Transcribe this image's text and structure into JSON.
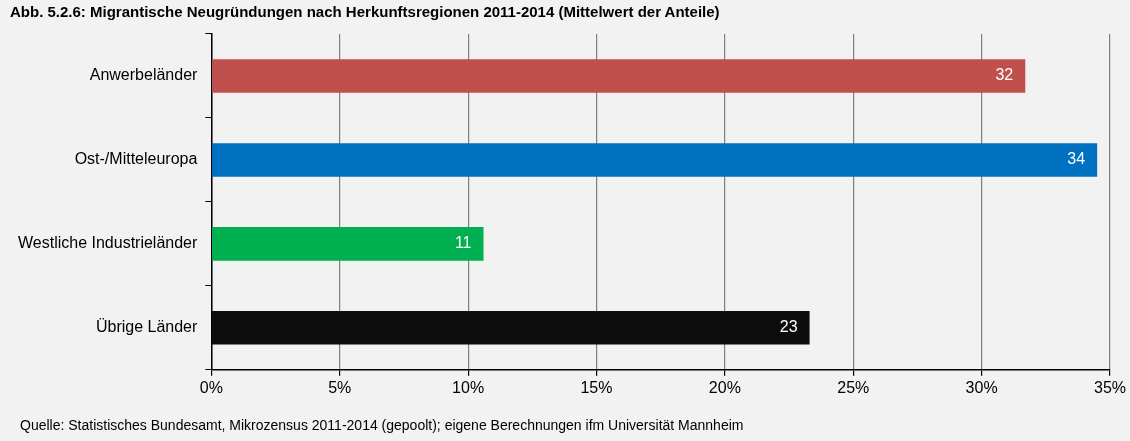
{
  "chart_data": {
    "type": "bar",
    "orientation": "horizontal",
    "title": "Abb. 5.2.6: Migrantische Neugründungen nach Herkunftsregionen 2011-2014 (Mittelwert der Anteile)",
    "categories": [
      "Anwerbeländer",
      "Ost-/Mitteleuropa",
      "Westliche Industrieländer",
      "Übrige Länder"
    ],
    "values": [
      31.7,
      34.5,
      10.6,
      23.3
    ],
    "colors": [
      "#c0504d",
      "#0070c0",
      "#00b050",
      "#0d0d0d"
    ],
    "value_labels": [
      "32",
      "34",
      "11",
      "23"
    ],
    "xlim": [
      0,
      35
    ],
    "xticks": [
      {
        "value": 0,
        "label": "0%"
      },
      {
        "value": 5,
        "label": "5%"
      },
      {
        "value": 10,
        "label": "10%"
      },
      {
        "value": 15,
        "label": "15%"
      },
      {
        "value": 20,
        "label": "20%"
      },
      {
        "value": 25,
        "label": "25%"
      },
      {
        "value": 30,
        "label": "30%"
      },
      {
        "value": 35,
        "label": "35%"
      }
    ],
    "grid": "x",
    "annotations": [
      "Quelle: Statistisches Bundesamt, Mikrozensus 2011-2014 (gepoolt); eigene Berechnungen ifm Universität Mannheim"
    ]
  }
}
